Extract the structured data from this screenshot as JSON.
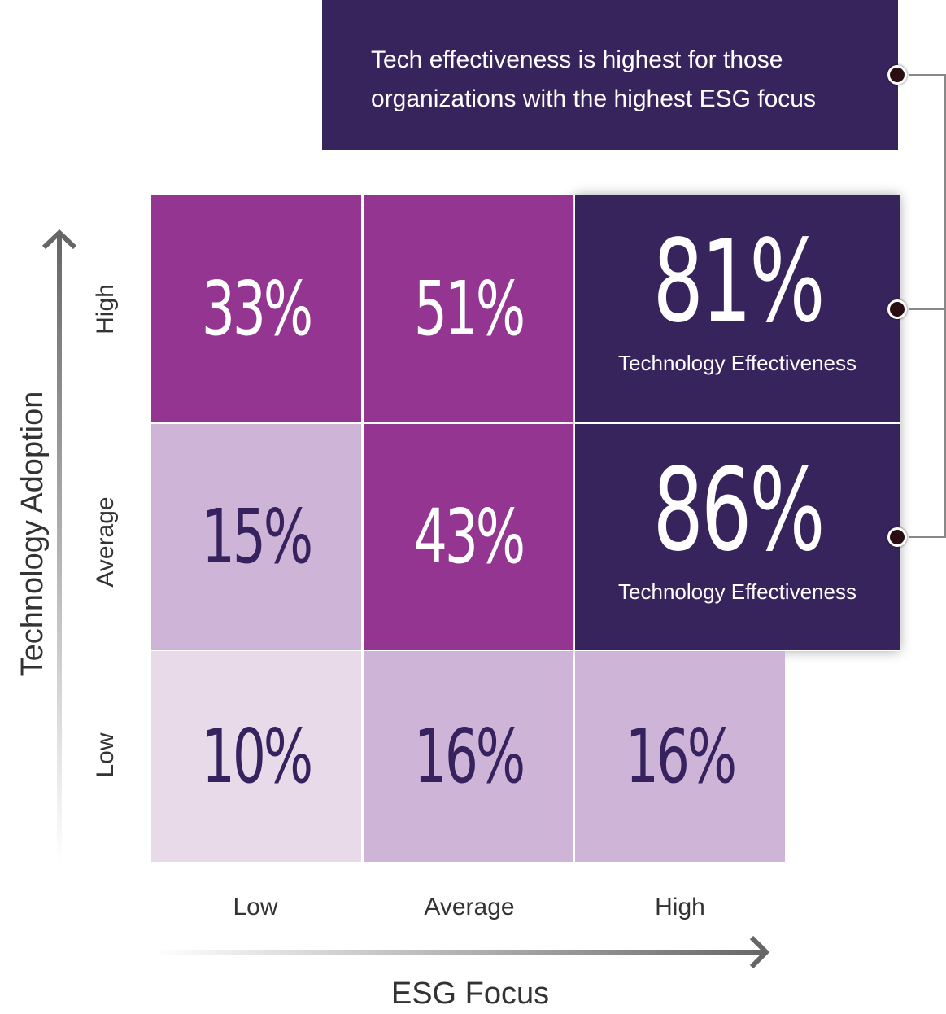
{
  "callout": {
    "line1": "Tech effectiveness is highest for those",
    "line2": "organizations with the highest ESG focus"
  },
  "colors": {
    "dark_purple": "#38245c",
    "magenta": "#933591",
    "light_lilac": "#ceb4d6",
    "pale_lilac": "#e8dae9",
    "dark_text": "#36225e",
    "white": "#ffffff"
  },
  "chart_data": {
    "type": "heatmap",
    "xlabel": "ESG Focus",
    "ylabel": "Technology Adoption",
    "x_categories": [
      "Low",
      "Average",
      "High"
    ],
    "y_categories": [
      "High",
      "Average",
      "Low"
    ],
    "cells": [
      {
        "row": "High",
        "col": "Low",
        "value": "33%",
        "color": "#933591"
      },
      {
        "row": "High",
        "col": "Average",
        "value": "51%",
        "color": "#933591"
      },
      {
        "row": "High",
        "col": "High",
        "value": "81%",
        "subtitle": "Technology Effectiveness",
        "color": "#38245c"
      },
      {
        "row": "Average",
        "col": "Low",
        "value": "15%",
        "color": "#ceb4d6"
      },
      {
        "row": "Average",
        "col": "Average",
        "value": "43%",
        "color": "#933591"
      },
      {
        "row": "Average",
        "col": "High",
        "value": "86%",
        "subtitle": "Technology Effectiveness",
        "color": "#38245c"
      },
      {
        "row": "Low",
        "col": "Low",
        "value": "10%",
        "color": "#e8dae9"
      },
      {
        "row": "Low",
        "col": "Average",
        "value": "16%",
        "color": "#ceb4d6"
      },
      {
        "row": "Low",
        "col": "High",
        "value": "16%",
        "color": "#ceb4d6"
      }
    ]
  }
}
